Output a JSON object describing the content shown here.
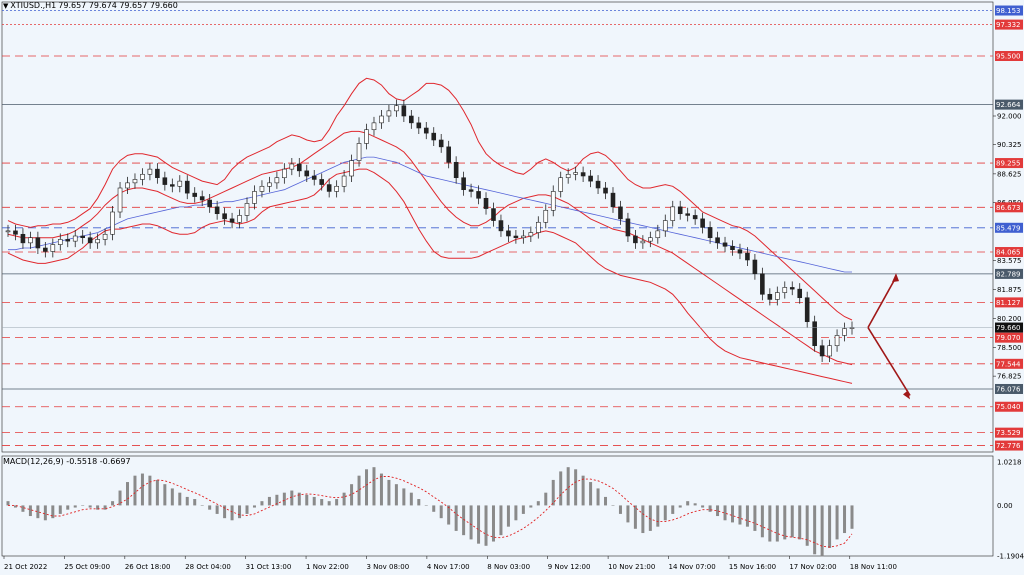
{
  "header": {
    "symbol": "XTIUSD.,H1",
    "ohlc": "79.657 79.674 79.657 79.660",
    "menu_icon": "triangle-down-icon"
  },
  "macd": {
    "label": "MACD(12,26,9) -0.5518 -0.6697",
    "axis_labels": [
      "1.0218",
      "0.00",
      "-1.1904"
    ],
    "axis_values": [
      1.0218,
      0.0,
      -1.1904
    ]
  },
  "colors": {
    "background": "#f0f6fc",
    "bollinger": "#e0282e",
    "ma": "#5564d8",
    "candle": "#222222",
    "level_red": "#e23a3a",
    "level_blue": "#3f5fd0",
    "level_dark": "#4a5a6a",
    "arrow": "#a01818"
  },
  "chart_data": {
    "type": "line",
    "title": "",
    "instrument": "XTIUSD",
    "timeframe": "H1",
    "x_tick_labels": [
      "21 Oct 2022",
      "25 Oct 09:00",
      "26 Oct 18:00",
      "28 Oct 04:00",
      "31 Oct 13:00",
      "1 Nov 22:00",
      "3 Nov 08:00",
      "4 Nov 17:00",
      "8 Nov 03:00",
      "9 Nov 12:00",
      "10 Nov 21:00",
      "14 Nov 07:00",
      "15 Nov 16:00",
      "17 Nov 02:00",
      "18 Nov 11:00"
    ],
    "y_tick_labels": [
      "92.000",
      "90.325",
      "88.625",
      "86.950",
      "83.575",
      "81.875",
      "80.200",
      "78.500",
      "76.825"
    ],
    "y_tick_values": [
      92.0,
      90.325,
      88.625,
      86.95,
      83.575,
      81.875,
      80.2,
      78.5,
      76.825
    ],
    "ylim": [
      72.4,
      98.3
    ],
    "current_price": {
      "label": "79.660",
      "value": 79.66
    },
    "horizontal_levels": [
      {
        "label": "98.153",
        "value": 98.153,
        "kind": "blue",
        "style": "dotted"
      },
      {
        "label": "97.332",
        "value": 97.332,
        "kind": "red",
        "style": "dotted"
      },
      {
        "label": "95.500",
        "value": 95.5,
        "kind": "red",
        "style": "dashed"
      },
      {
        "label": "92.664",
        "value": 92.664,
        "kind": "dark",
        "style": "solid"
      },
      {
        "label": "89.255",
        "value": 89.255,
        "kind": "red",
        "style": "dashed"
      },
      {
        "label": "86.673",
        "value": 86.673,
        "kind": "red",
        "style": "dashed"
      },
      {
        "label": "85.479",
        "value": 85.479,
        "kind": "blue",
        "style": "dashed"
      },
      {
        "label": "84.065",
        "value": 84.065,
        "kind": "red",
        "style": "dashed"
      },
      {
        "label": "82.789",
        "value": 82.789,
        "kind": "dark",
        "style": "solid"
      },
      {
        "label": "81.127",
        "value": 81.127,
        "kind": "red",
        "style": "dashed"
      },
      {
        "label": "79.070",
        "value": 79.07,
        "kind": "red",
        "style": "dashed"
      },
      {
        "label": "77.544",
        "value": 77.544,
        "kind": "red",
        "style": "dashed"
      },
      {
        "label": "76.076",
        "value": 76.076,
        "kind": "dark",
        "style": "solid"
      },
      {
        "label": "75.040",
        "value": 75.04,
        "kind": "red",
        "style": "dashed"
      },
      {
        "label": "73.529",
        "value": 73.529,
        "kind": "red",
        "style": "dashed"
      },
      {
        "label": "72.776",
        "value": 72.776,
        "kind": "red",
        "style": "dashed"
      }
    ],
    "price_close": [
      85.3,
      85.1,
      84.6,
      84.9,
      84.3,
      84.1,
      84.5,
      84.8,
      84.7,
      85.0,
      84.9,
      84.6,
      84.8,
      85.1,
      86.4,
      87.8,
      88.1,
      88.3,
      88.6,
      88.9,
      88.4,
      88.0,
      87.9,
      88.2,
      87.5,
      87.3,
      87.1,
      86.7,
      86.3,
      86.0,
      85.8,
      86.2,
      86.9,
      87.6,
      87.9,
      88.1,
      88.4,
      88.9,
      89.2,
      88.8,
      88.5,
      88.3,
      88.0,
      87.6,
      87.9,
      88.5,
      89.4,
      90.4,
      91.2,
      91.6,
      92.0,
      92.3,
      92.6,
      92.0,
      91.6,
      91.3,
      91.0,
      90.6,
      90.2,
      89.3,
      88.4,
      87.7,
      87.6,
      87.2,
      86.6,
      85.9,
      85.3,
      85.0,
      84.9,
      85.0,
      85.2,
      85.8,
      86.5,
      87.6,
      88.4,
      88.6,
      88.7,
      88.5,
      88.2,
      87.8,
      87.5,
      86.7,
      86.0,
      85.0,
      84.6,
      84.7,
      84.9,
      85.3,
      85.9,
      86.7,
      86.3,
      86.2,
      86.0,
      85.5,
      84.9,
      84.6,
      84.4,
      84.2,
      84.0,
      83.6,
      82.8,
      81.6,
      81.3,
      81.7,
      82.0,
      81.9,
      81.4,
      80.0,
      78.6,
      78.0,
      78.6,
      79.2,
      79.6,
      79.66
    ],
    "series": [
      {
        "kind": "bb_upper",
        "values": [
          85.9,
          85.7,
          85.6,
          85.5,
          85.6,
          85.6,
          85.7,
          85.7,
          85.8,
          86.0,
          86.3,
          86.6,
          87.2,
          88.0,
          88.9,
          89.4,
          89.7,
          89.8,
          89.8,
          89.7,
          89.6,
          89.3,
          89.0,
          88.8,
          88.6,
          88.4,
          88.2,
          88.1,
          88.0,
          88.3,
          88.9,
          89.3,
          89.6,
          89.8,
          90.0,
          90.2,
          90.5,
          90.7,
          90.9,
          90.8,
          90.6,
          90.5,
          90.6,
          91.2,
          92.0,
          92.6,
          93.3,
          93.9,
          94.2,
          94.1,
          93.8,
          93.3,
          93.0,
          92.9,
          93.2,
          93.5,
          93.9,
          93.9,
          93.8,
          93.5,
          93.0,
          92.3,
          91.5,
          90.5,
          89.8,
          89.4,
          89.1,
          88.9,
          88.7,
          88.6,
          88.9,
          89.3,
          89.5,
          89.3,
          89.0,
          88.8,
          89.0,
          89.5,
          89.8,
          89.9,
          89.7,
          89.3,
          88.8,
          88.3,
          88.0,
          87.8,
          87.8,
          87.9,
          88.0,
          87.9,
          87.6,
          87.2,
          86.8,
          86.4,
          86.2,
          86.0,
          85.8,
          85.6,
          85.5,
          85.3,
          85.0,
          84.6,
          84.2,
          83.8,
          83.4,
          83.0,
          82.6,
          82.2,
          81.8,
          81.4,
          81.0,
          80.6,
          80.3,
          80.1
        ]
      },
      {
        "kind": "bb_middle",
        "values": [
          85.1,
          85.0,
          84.9,
          84.9,
          84.9,
          84.9,
          84.9,
          85.0,
          85.1,
          85.3,
          85.6,
          85.9,
          86.3,
          86.8,
          87.2,
          87.5,
          87.7,
          87.8,
          87.8,
          87.7,
          87.6,
          87.4,
          87.2,
          87.0,
          86.9,
          86.9,
          87.0,
          87.2,
          87.4,
          87.6,
          87.8,
          88.0,
          88.2,
          88.4,
          88.6,
          88.7,
          88.8,
          88.9,
          89.0,
          89.2,
          89.5,
          89.8,
          90.1,
          90.4,
          90.7,
          91.0,
          91.1,
          91.1,
          91.0,
          90.8,
          90.6,
          90.4,
          90.2,
          89.9,
          89.4,
          88.8,
          88.2,
          87.6,
          87.0,
          86.5,
          86.1,
          85.8,
          85.6,
          85.6,
          85.8,
          86.1,
          86.5,
          86.8,
          87.0,
          87.2,
          87.3,
          87.4,
          87.4,
          87.3,
          87.1,
          86.9,
          86.6,
          86.3,
          86.0,
          85.8,
          85.6,
          85.4,
          85.3,
          85.2,
          85.0,
          84.8,
          84.6,
          84.4,
          84.2,
          84.0,
          83.7,
          83.4,
          83.1,
          82.8,
          82.5,
          82.2,
          81.9,
          81.6,
          81.3,
          81.0,
          80.7,
          80.4,
          80.1,
          79.8,
          79.5,
          79.2,
          78.9,
          78.6,
          78.3,
          78.1,
          77.9,
          77.7,
          77.6,
          77.5
        ]
      },
      {
        "kind": "bb_lower",
        "values": [
          84.0,
          83.8,
          83.6,
          83.5,
          83.4,
          83.4,
          83.5,
          83.6,
          83.7,
          84.0,
          84.3,
          84.7,
          85.0,
          85.3,
          85.4,
          85.4,
          85.5,
          85.6,
          85.7,
          85.7,
          85.6,
          85.4,
          85.2,
          85.1,
          85.1,
          85.2,
          85.5,
          85.7,
          85.8,
          85.9,
          85.8,
          85.7,
          85.8,
          86.0,
          86.4,
          86.7,
          86.8,
          86.9,
          87.0,
          87.1,
          87.2,
          87.4,
          87.8,
          88.3,
          88.6,
          88.7,
          88.8,
          88.9,
          88.9,
          88.7,
          88.4,
          88.1,
          87.6,
          87.0,
          86.2,
          85.4,
          84.7,
          84.1,
          83.8,
          83.7,
          83.7,
          83.7,
          83.7,
          83.8,
          84.0,
          84.2,
          84.4,
          84.6,
          84.8,
          84.9,
          85.0,
          85.2,
          85.3,
          85.2,
          85.0,
          84.8,
          84.6,
          84.2,
          83.8,
          83.4,
          83.1,
          82.9,
          82.7,
          82.6,
          82.5,
          82.4,
          82.3,
          82.1,
          81.9,
          81.6,
          81.1,
          80.5,
          80.0,
          79.5,
          79.0,
          78.6,
          78.3,
          78.1,
          77.9,
          77.8,
          77.7,
          77.6,
          77.5,
          77.4,
          77.3,
          77.2,
          77.1,
          77.0,
          76.9,
          76.8,
          76.7,
          76.6,
          76.5,
          76.4
        ]
      },
      {
        "kind": "ma_blue",
        "values": [
          84.2,
          84.2,
          84.3,
          84.3,
          84.4,
          84.5,
          84.6,
          84.7,
          84.8,
          84.9,
          85.0,
          85.1,
          85.2,
          85.4,
          85.6,
          85.8,
          86.0,
          86.1,
          86.2,
          86.3,
          86.4,
          86.5,
          86.6,
          86.7,
          86.7,
          86.8,
          86.8,
          86.9,
          86.9,
          87.0,
          87.0,
          87.1,
          87.2,
          87.3,
          87.4,
          87.5,
          87.6,
          87.7,
          87.9,
          88.1,
          88.3,
          88.5,
          88.7,
          88.9,
          89.1,
          89.3,
          89.4,
          89.5,
          89.6,
          89.6,
          89.5,
          89.4,
          89.3,
          89.1,
          88.9,
          88.7,
          88.5,
          88.4,
          88.3,
          88.2,
          88.1,
          88.0,
          87.9,
          87.8,
          87.7,
          87.6,
          87.5,
          87.4,
          87.3,
          87.2,
          87.1,
          87.0,
          86.9,
          86.8,
          86.7,
          86.6,
          86.5,
          86.4,
          86.3,
          86.2,
          86.1,
          86.0,
          85.9,
          85.8,
          85.7,
          85.6,
          85.5,
          85.4,
          85.3,
          85.2,
          85.1,
          85.0,
          84.9,
          84.8,
          84.7,
          84.6,
          84.5,
          84.4,
          84.3,
          84.2,
          84.1,
          84.0,
          83.9,
          83.8,
          83.7,
          83.6,
          83.5,
          83.4,
          83.3,
          83.2,
          83.1,
          83.0,
          82.9,
          82.9
        ]
      }
    ],
    "macd_histogram": [
      0.1,
      -0.05,
      -0.15,
      -0.25,
      -0.3,
      -0.35,
      -0.3,
      -0.2,
      -0.1,
      -0.05,
      0.0,
      -0.05,
      -0.1,
      -0.1,
      0.1,
      0.35,
      0.55,
      0.7,
      0.75,
      0.7,
      0.6,
      0.5,
      0.4,
      0.3,
      0.2,
      0.15,
      0.0,
      -0.1,
      -0.2,
      -0.3,
      -0.35,
      -0.3,
      -0.2,
      -0.05,
      0.1,
      0.2,
      0.25,
      0.3,
      0.35,
      0.3,
      0.25,
      0.2,
      0.15,
      0.1,
      0.15,
      0.3,
      0.5,
      0.7,
      0.85,
      0.9,
      0.75,
      0.6,
      0.5,
      0.4,
      0.3,
      0.15,
      0.0,
      -0.15,
      -0.3,
      -0.45,
      -0.6,
      -0.7,
      -0.8,
      -0.9,
      -0.95,
      -0.85,
      -0.7,
      -0.5,
      -0.35,
      -0.2,
      -0.05,
      0.1,
      0.3,
      0.6,
      0.8,
      0.9,
      0.85,
      0.7,
      0.55,
      0.4,
      0.2,
      0.0,
      -0.2,
      -0.4,
      -0.55,
      -0.65,
      -0.6,
      -0.5,
      -0.35,
      -0.2,
      -0.05,
      0.1,
      0.05,
      -0.05,
      -0.15,
      -0.25,
      -0.35,
      -0.4,
      -0.45,
      -0.5,
      -0.6,
      -0.75,
      -0.85,
      -0.85,
      -0.8,
      -0.75,
      -0.8,
      -0.95,
      -1.15,
      -1.2,
      -1.0,
      -0.8,
      -0.65,
      -0.55
    ],
    "macd_signal": [
      0.0,
      0.0,
      -0.05,
      -0.1,
      -0.15,
      -0.2,
      -0.25,
      -0.25,
      -0.2,
      -0.15,
      -0.1,
      -0.08,
      -0.08,
      -0.08,
      -0.03,
      0.05,
      0.15,
      0.3,
      0.45,
      0.55,
      0.6,
      0.58,
      0.52,
      0.45,
      0.37,
      0.3,
      0.22,
      0.12,
      0.03,
      -0.06,
      -0.15,
      -0.22,
      -0.24,
      -0.2,
      -0.12,
      -0.04,
      0.04,
      0.12,
      0.2,
      0.25,
      0.27,
      0.26,
      0.23,
      0.2,
      0.18,
      0.2,
      0.26,
      0.36,
      0.48,
      0.6,
      0.68,
      0.68,
      0.64,
      0.58,
      0.5,
      0.42,
      0.32,
      0.2,
      0.08,
      -0.05,
      -0.2,
      -0.33,
      -0.45,
      -0.57,
      -0.68,
      -0.75,
      -0.76,
      -0.72,
      -0.64,
      -0.54,
      -0.42,
      -0.28,
      -0.12,
      0.06,
      0.25,
      0.42,
      0.55,
      0.62,
      0.62,
      0.58,
      0.5,
      0.4,
      0.26,
      0.1,
      -0.05,
      -0.2,
      -0.32,
      -0.38,
      -0.38,
      -0.34,
      -0.28,
      -0.2,
      -0.14,
      -0.1,
      -0.1,
      -0.13,
      -0.18,
      -0.24,
      -0.3,
      -0.36,
      -0.42,
      -0.5,
      -0.58,
      -0.66,
      -0.72,
      -0.75,
      -0.77,
      -0.81,
      -0.88,
      -0.96,
      -0.98,
      -0.95,
      -0.89,
      -0.67
    ]
  }
}
